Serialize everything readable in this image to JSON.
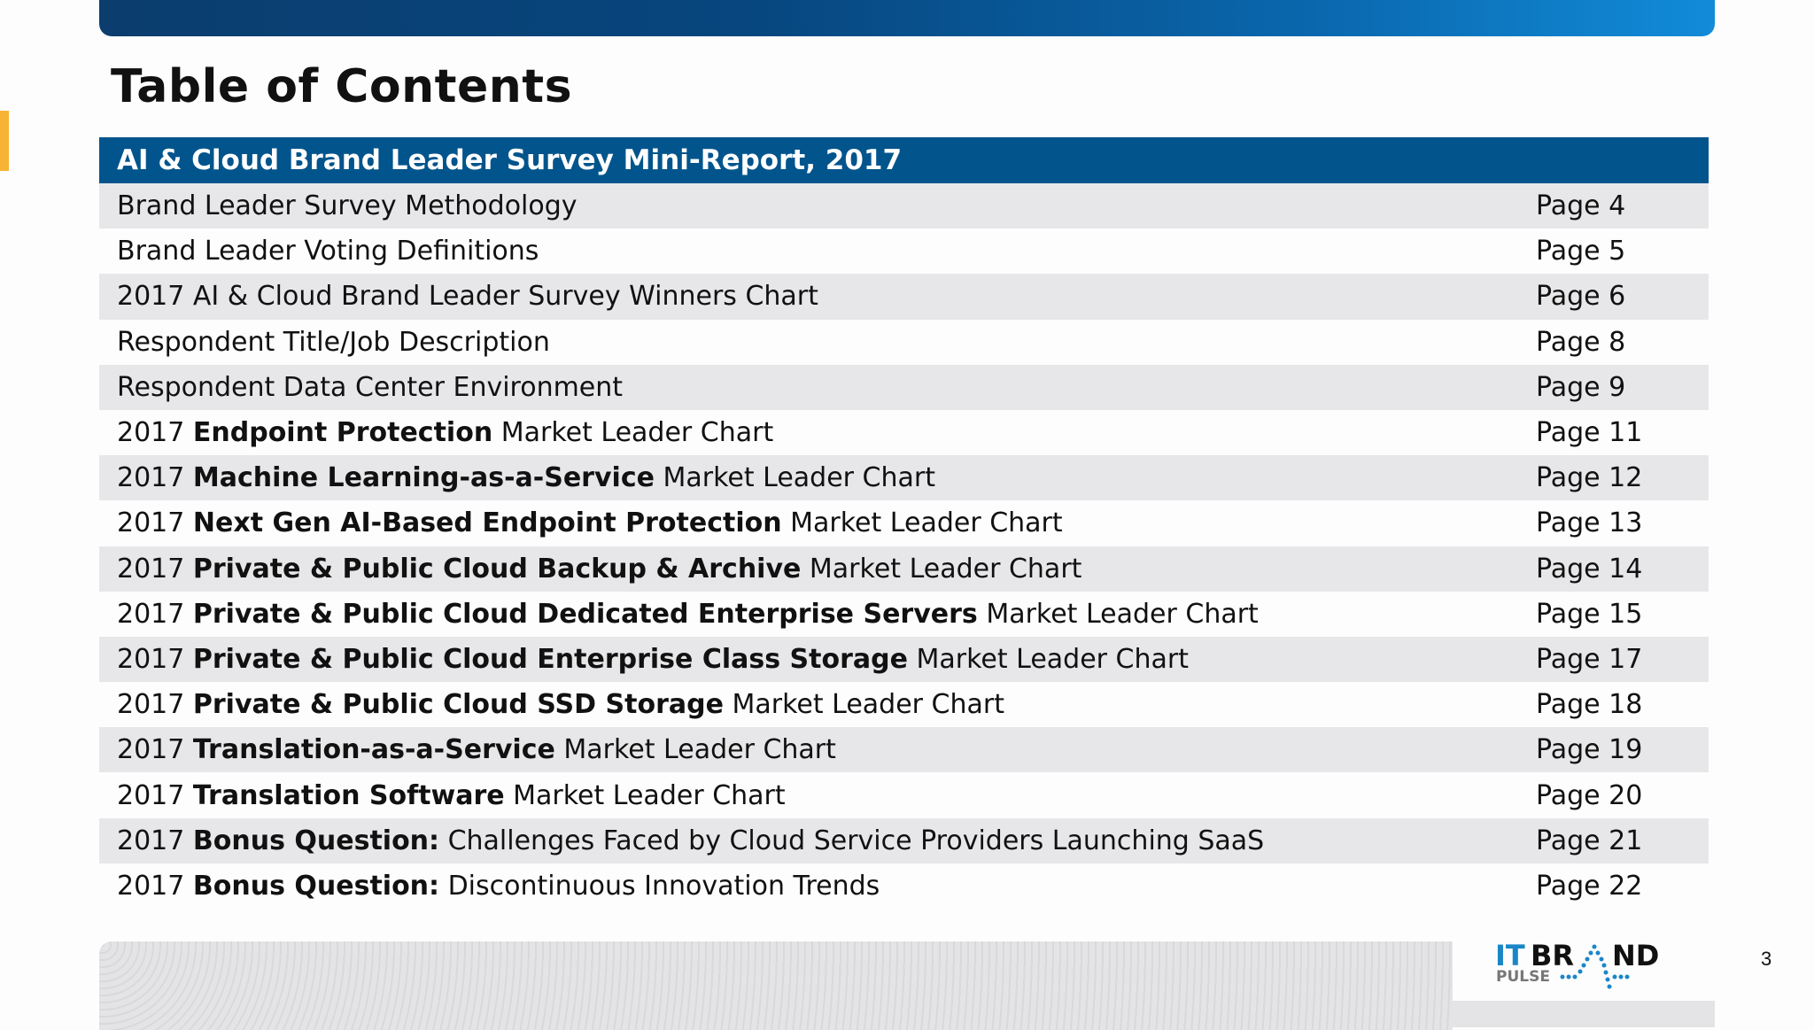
{
  "title": "Table of Contents",
  "section_header": "AI & Cloud Brand Leader Survey Mini-Report, 2017",
  "rows": [
    {
      "prefix": "Brand Leader Survey Methodology",
      "bold": "",
      "suffix": "",
      "page": "Page 4"
    },
    {
      "prefix": "Brand Leader Voting Definitions",
      "bold": "",
      "suffix": "",
      "page": "Page 5"
    },
    {
      "prefix": "2017 AI & Cloud Brand Leader Survey Winners Chart",
      "bold": "",
      "suffix": "",
      "page": "Page 6"
    },
    {
      "prefix": "Respondent Title/Job Description",
      "bold": "",
      "suffix": "",
      "page": "Page 8"
    },
    {
      "prefix": "Respondent Data Center Environment",
      "bold": "",
      "suffix": "",
      "page": "Page 9"
    },
    {
      "prefix": "2017 ",
      "bold": "Endpoint Protection",
      "suffix": " Market Leader Chart",
      "page": "Page 11"
    },
    {
      "prefix": "2017 ",
      "bold": "Machine Learning-as-a-Service",
      "suffix": " Market Leader Chart",
      "page": "Page 12"
    },
    {
      "prefix": "2017 ",
      "bold": "Next Gen AI-Based Endpoint Protection",
      "suffix": " Market Leader Chart",
      "page": "Page 13"
    },
    {
      "prefix": "2017 ",
      "bold": "Private & Public Cloud Backup & Archive",
      "suffix": " Market Leader Chart",
      "page": "Page 14"
    },
    {
      "prefix": "2017 ",
      "bold": "Private & Public Cloud Dedicated Enterprise Servers",
      "suffix": " Market Leader Chart",
      "page": "Page 15"
    },
    {
      "prefix": "2017 ",
      "bold": "Private & Public Cloud Enterprise Class Storage",
      "suffix": " Market Leader Chart",
      "page": "Page 17"
    },
    {
      "prefix": "2017 ",
      "bold": "Private & Public Cloud SSD Storage",
      "suffix": " Market Leader Chart",
      "page": "Page 18"
    },
    {
      "prefix": "2017 ",
      "bold": "Translation-as-a-Service",
      "suffix": " Market Leader Chart",
      "page": "Page 19"
    },
    {
      "prefix": "2017 ",
      "bold": "Translation Software",
      "suffix": " Market Leader Chart",
      "page": "Page 20"
    },
    {
      "prefix": "2017 ",
      "bold": "Bonus Question:",
      "suffix": " Challenges Faced by Cloud Service Providers Launching SaaS",
      "page": "Page 21"
    },
    {
      "prefix": "2017 ",
      "bold": "Bonus Question:",
      "suffix": " Discontinuous Innovation Trends",
      "page": "Page 22"
    }
  ],
  "logo": {
    "line1_a": "IT",
    "line1_b": "BRAND",
    "line2": "PULSE"
  },
  "page_number": "3",
  "colors": {
    "header_bg": "#02548c",
    "accent_orange": "#f7b334",
    "logo_blue": "#1a86c8"
  }
}
